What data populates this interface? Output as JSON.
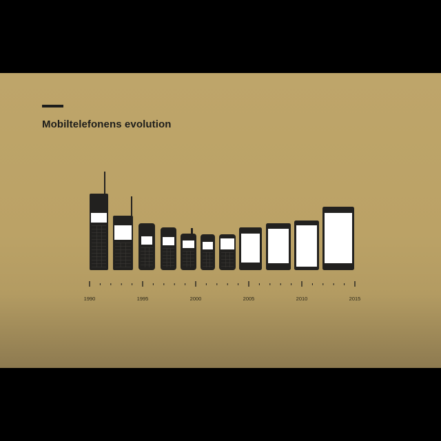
{
  "title": "Mobiltelefonens evolution",
  "colors": {
    "background": "#bea56a",
    "phone_body": "#22211f",
    "screen": "#ffffff"
  },
  "timeline": {
    "start_year": 1990,
    "end_year": 2015,
    "labeled_years": [
      "1990",
      "1995",
      "2000",
      "2005",
      "2010",
      "2015"
    ]
  },
  "phones": [
    {
      "kind": "brick",
      "antenna": "long"
    },
    {
      "kind": "brick",
      "antenna": "long"
    },
    {
      "kind": "candybar",
      "antenna": "none"
    },
    {
      "kind": "candybar",
      "antenna": "none"
    },
    {
      "kind": "candybar",
      "antenna": "stub"
    },
    {
      "kind": "candybar",
      "antenna": "none"
    },
    {
      "kind": "candybar",
      "antenna": "none"
    },
    {
      "kind": "smartphone",
      "antenna": "none"
    },
    {
      "kind": "smartphone",
      "antenna": "none"
    },
    {
      "kind": "smartphone",
      "antenna": "none"
    },
    {
      "kind": "smartphone",
      "antenna": "none"
    }
  ]
}
